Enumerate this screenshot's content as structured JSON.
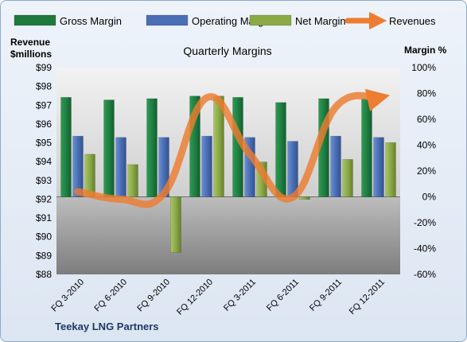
{
  "chart_data": {
    "type": "bar",
    "title": "Quarterly Margins",
    "categories": [
      "FQ 3-2010",
      "FQ 6-2010",
      "FQ 9-2010",
      "FQ 12-2010",
      "FQ 3-2011",
      "FQ 6-2011",
      "FQ 9-2011",
      "FQ 12-2011"
    ],
    "series": [
      {
        "name": "Gross Margin",
        "axis": "right",
        "kind": "bar",
        "color": "#1e7a3c",
        "values": [
          77,
          75,
          76,
          78,
          77,
          73,
          76,
          76
        ]
      },
      {
        "name": "Operating Margin",
        "axis": "right",
        "kind": "bar",
        "color": "#4a6eb5",
        "values": [
          47,
          46,
          46,
          47,
          46,
          43,
          47,
          46
        ]
      },
      {
        "name": "Net Margin",
        "axis": "right",
        "kind": "bar",
        "color": "#8aaa45",
        "values": [
          33,
          25,
          -43,
          78,
          27,
          -2,
          29,
          42
        ]
      },
      {
        "name": "Revenues",
        "axis": "left",
        "kind": "line",
        "color": "#ed7d31",
        "values": [
          92.4,
          92.0,
          92.3,
          97.4,
          94.4,
          92.1,
          96.9,
          97.4
        ]
      }
    ],
    "yleft": {
      "label": "Revenue $millions",
      "label_lines": [
        "Revenue",
        "$millions"
      ],
      "min": 88,
      "max": 99,
      "ticks": [
        "$88",
        "$89",
        "$90",
        "$91",
        "$92",
        "$93",
        "$94",
        "$95",
        "$96",
        "$97",
        "$98",
        "$99"
      ]
    },
    "yright": {
      "label": "Margin %",
      "min": -60,
      "max": 100,
      "ticks": [
        "-60%",
        "-40%",
        "-20%",
        "0%",
        "20%",
        "40%",
        "60%",
        "80%",
        "100%"
      ]
    },
    "legend": {
      "position": "top",
      "entries": [
        "Gross Margin",
        "Operating Margin",
        "Net Margin",
        "Revenues"
      ]
    },
    "grid": false
  },
  "footer": {
    "company": "Teekay LNG Partners"
  }
}
